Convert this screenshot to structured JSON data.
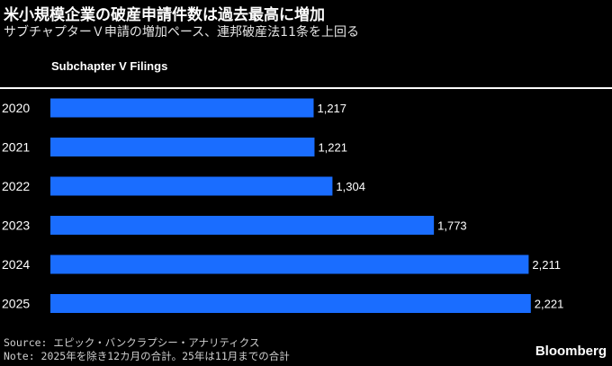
{
  "title": "米小規模企業の破産申請件数は過去最高に増加",
  "subtitle": "サブチャプターＶ申請の増加ペース、連邦破産法11条を上回る",
  "source": "Source: エピック・バンクラプシー・アナリティクス",
  "note": "Note: 2025年を除き12カ月の合計。25年は11月までの合計",
  "brand": "Bloomberg",
  "colors": {
    "bar": "#1a6dff",
    "background": "#000000",
    "text": "#ffffff"
  },
  "chart_data": {
    "type": "bar",
    "orientation": "horizontal",
    "title": "Subchapter V Filings",
    "categories": [
      "2020",
      "2021",
      "2022",
      "2023",
      "2024",
      "2025"
    ],
    "values": [
      1217,
      1221,
      1304,
      1773,
      2211,
      2221
    ],
    "value_labels": [
      "1,217",
      "1,221",
      "1,304",
      "1,773",
      "2,211",
      "2,221"
    ],
    "xlim": [
      0,
      2330
    ],
    "grid": false
  }
}
